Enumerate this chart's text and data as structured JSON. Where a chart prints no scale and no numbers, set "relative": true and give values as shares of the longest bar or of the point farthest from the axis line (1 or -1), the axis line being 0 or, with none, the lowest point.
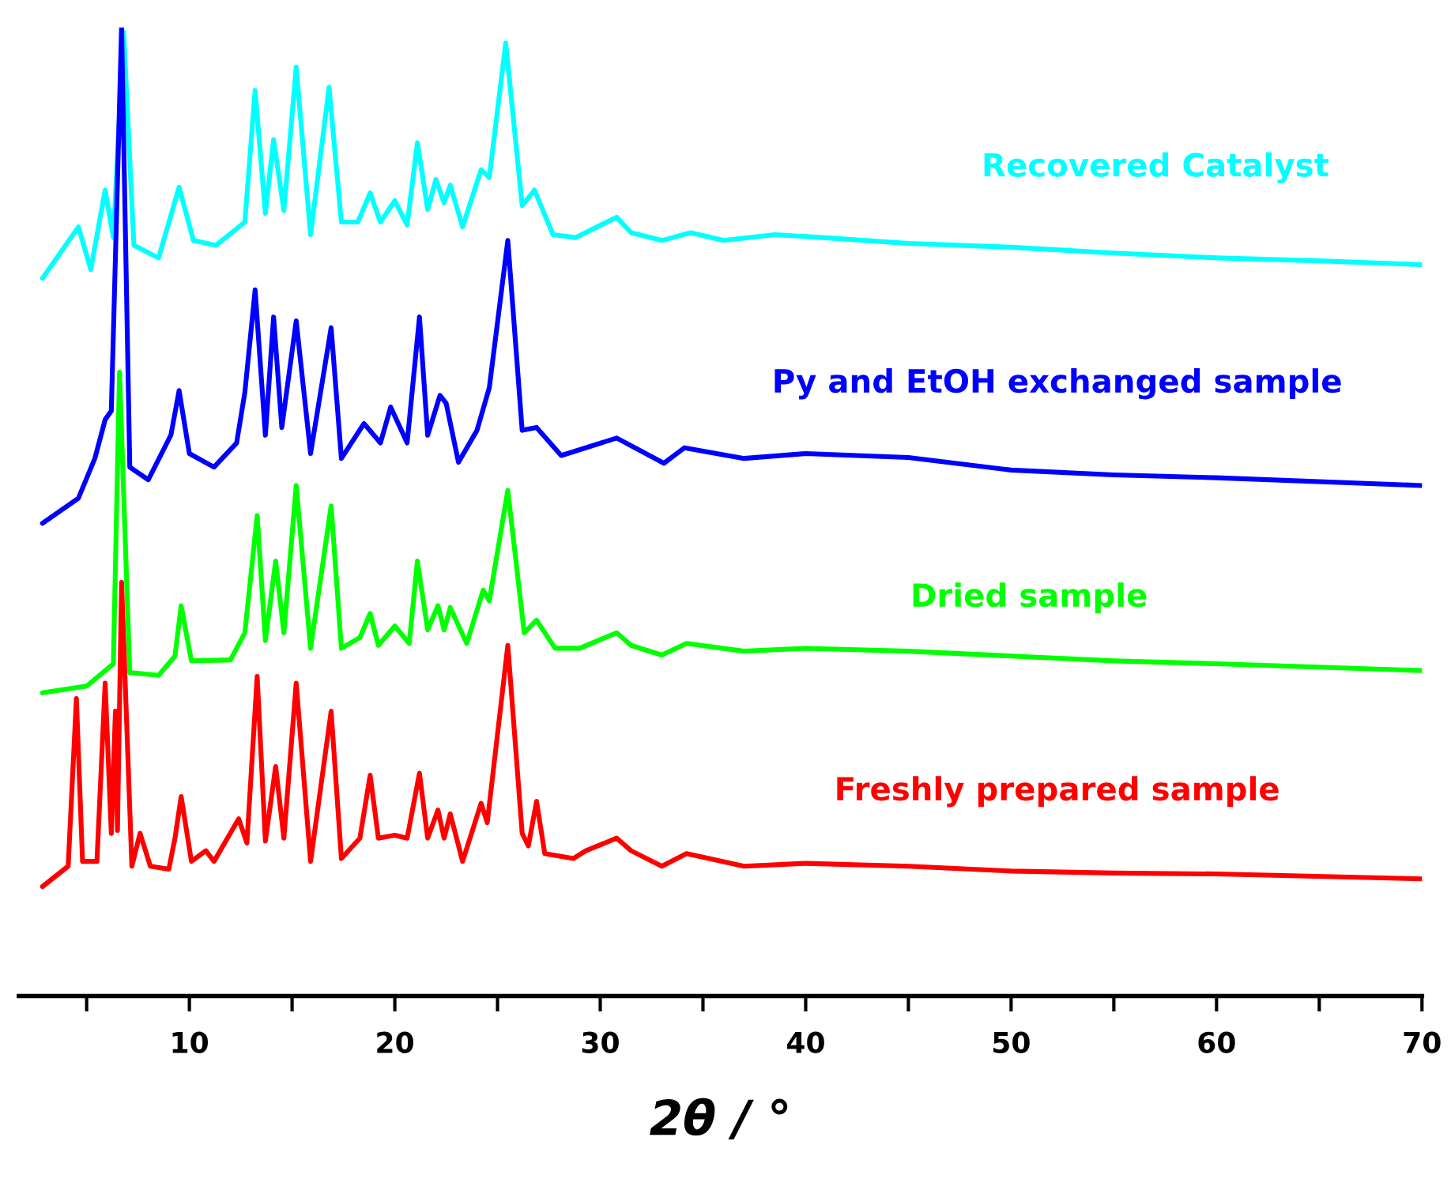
{
  "chart_data": {
    "type": "line",
    "relative": true,
    "xlabel": "2θ / °",
    "xlim": [
      1.7,
      70
    ],
    "xticks": [
      {
        "value": 5,
        "label": null
      },
      10,
      {
        "value": 15,
        "label": null
      },
      20,
      {
        "value": 25,
        "label": null
      },
      30,
      {
        "value": 35,
        "label": null
      },
      40,
      {
        "value": 45,
        "label": null
      },
      50,
      {
        "value": 55,
        "label": null
      },
      60,
      {
        "value": 65,
        "label": null
      },
      70
    ],
    "grid": false,
    "legend": false,
    "tick_labels": "x",
    "marker": "none",
    "line_style": "solid",
    "series": [
      {
        "name": "Recovered Catalyst",
        "color": "#00ffff",
        "x": [
          2.85,
          4.6,
          5.2,
          5.9,
          6.3,
          6.8,
          7.3,
          8.5,
          9.5,
          10.2,
          11.3,
          12.7,
          13.2,
          13.7,
          14.1,
          14.6,
          15.2,
          15.9,
          16.8,
          17.4,
          18.2,
          18.8,
          19.3,
          20.0,
          20.6,
          21.1,
          21.6,
          22.0,
          22.4,
          22.7,
          23.3,
          24.2,
          24.6,
          25.4,
          26.2,
          26.8,
          27.7,
          28.8,
          30.8,
          31.5,
          33,
          34.4,
          36,
          38.5,
          40.8,
          45,
          50,
          55,
          60,
          65,
          70
        ],
        "values": [
          0.741,
          0.794,
          0.75,
          0.832,
          0.783,
          0.995,
          0.775,
          0.762,
          0.835,
          0.78,
          0.775,
          0.799,
          0.935,
          0.808,
          0.884,
          0.811,
          0.959,
          0.786,
          0.938,
          0.799,
          0.799,
          0.829,
          0.799,
          0.821,
          0.796,
          0.881,
          0.812,
          0.843,
          0.819,
          0.837,
          0.794,
          0.853,
          0.845,
          0.984,
          0.816,
          0.832,
          0.786,
          0.783,
          0.804,
          0.788,
          0.78,
          0.788,
          0.78,
          0.786,
          0.783,
          0.777,
          0.773,
          0.767,
          0.762,
          0.759,
          0.755
        ]
      },
      {
        "name": "Py and EtOH exchanged sample",
        "color": "#0000ff",
        "x": [
          2.85,
          4.6,
          5.4,
          5.9,
          6.2,
          6.7,
          7.1,
          8.0,
          9.1,
          9.5,
          10.0,
          11.2,
          12.3,
          12.7,
          13.2,
          13.7,
          14.1,
          14.5,
          15.2,
          15.9,
          16.9,
          17.4,
          18.5,
          19.3,
          19.8,
          20.6,
          21.2,
          21.6,
          22.2,
          22.5,
          23.1,
          24.0,
          24.6,
          25.5,
          26.2,
          26.9,
          28.1,
          30.8,
          33.1,
          34.1,
          37,
          40,
          45,
          50,
          55,
          60,
          70
        ],
        "values": [
          0.488,
          0.514,
          0.555,
          0.595,
          0.604,
          1.0,
          0.546,
          0.533,
          0.579,
          0.625,
          0.56,
          0.546,
          0.571,
          0.623,
          0.729,
          0.579,
          0.701,
          0.587,
          0.697,
          0.56,
          0.69,
          0.555,
          0.591,
          0.571,
          0.608,
          0.571,
          0.701,
          0.579,
          0.62,
          0.612,
          0.551,
          0.584,
          0.628,
          0.78,
          0.584,
          0.587,
          0.558,
          0.576,
          0.55,
          0.566,
          0.555,
          0.56,
          0.556,
          0.543,
          0.538,
          0.535,
          0.527
        ]
      },
      {
        "name": "Dried sample",
        "color": "#00ff00",
        "x": [
          2.85,
          5,
          6.3,
          6.6,
          7.1,
          8.5,
          9.3,
          9.6,
          10.1,
          12,
          12.7,
          13.3,
          13.7,
          14.2,
          14.6,
          15.2,
          15.9,
          16.9,
          17.4,
          18.3,
          18.8,
          19.2,
          20,
          20.7,
          21.1,
          21.6,
          22.1,
          22.4,
          22.7,
          23.5,
          24.3,
          24.6,
          25.5,
          26.3,
          26.9,
          27.8,
          29,
          30.8,
          31.5,
          33,
          34.2,
          37,
          40,
          45,
          50,
          55,
          60,
          70
        ],
        "values": [
          0.313,
          0.32,
          0.343,
          0.644,
          0.334,
          0.331,
          0.351,
          0.403,
          0.346,
          0.347,
          0.375,
          0.496,
          0.367,
          0.449,
          0.375,
          0.527,
          0.359,
          0.506,
          0.359,
          0.37,
          0.395,
          0.362,
          0.382,
          0.364,
          0.449,
          0.378,
          0.403,
          0.378,
          0.401,
          0.364,
          0.419,
          0.408,
          0.522,
          0.375,
          0.388,
          0.359,
          0.359,
          0.375,
          0.362,
          0.352,
          0.364,
          0.356,
          0.359,
          0.356,
          0.351,
          0.346,
          0.343,
          0.336
        ]
      },
      {
        "name": "Freshly prepared sample",
        "color": "#ff0000",
        "x": [
          2.85,
          4.1,
          4.5,
          4.8,
          5.5,
          5.9,
          6.2,
          6.4,
          6.5,
          6.7,
          7.2,
          7.6,
          8.1,
          9.0,
          9.3,
          9.6,
          10.1,
          10.8,
          11.2,
          12.4,
          12.8,
          13.3,
          13.7,
          14.2,
          14.6,
          15.2,
          15.9,
          16.9,
          17.4,
          18.3,
          18.8,
          19.2,
          20,
          20.6,
          21.2,
          21.6,
          22.1,
          22.4,
          22.7,
          23.3,
          24.2,
          24.5,
          25.5,
          26.2,
          26.5,
          26.9,
          27.3,
          28.7,
          29.3,
          30.8,
          31.5,
          33,
          34.2,
          37,
          40,
          45,
          50,
          55,
          60,
          70
        ],
        "values": [
          0.113,
          0.134,
          0.307,
          0.139,
          0.139,
          0.323,
          0.168,
          0.294,
          0.171,
          0.427,
          0.134,
          0.168,
          0.134,
          0.131,
          0.163,
          0.206,
          0.139,
          0.15,
          0.139,
          0.183,
          0.158,
          0.33,
          0.16,
          0.237,
          0.163,
          0.323,
          0.139,
          0.294,
          0.142,
          0.163,
          0.228,
          0.163,
          0.166,
          0.163,
          0.23,
          0.163,
          0.192,
          0.163,
          0.188,
          0.139,
          0.199,
          0.179,
          0.362,
          0.168,
          0.155,
          0.201,
          0.147,
          0.142,
          0.15,
          0.163,
          0.15,
          0.134,
          0.147,
          0.134,
          0.137,
          0.134,
          0.129,
          0.127,
          0.126,
          0.121
        ]
      }
    ]
  }
}
